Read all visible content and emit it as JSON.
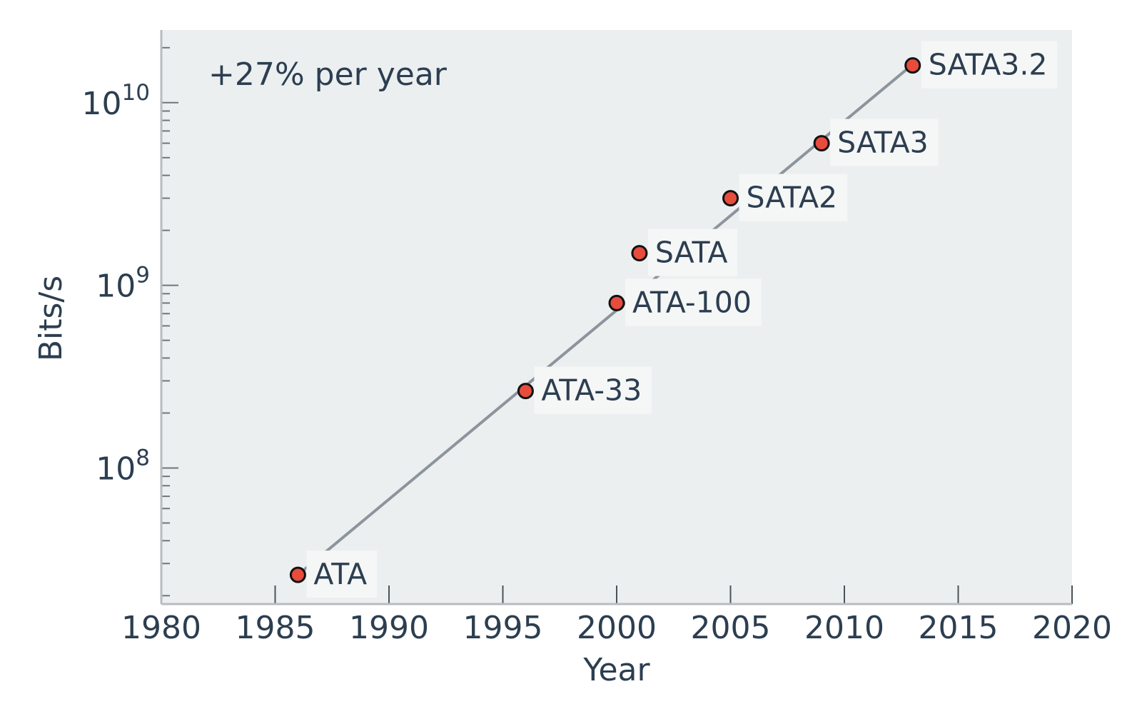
{
  "chart_data": {
    "type": "scatter",
    "title": "",
    "xlabel": "Year",
    "ylabel": "Bits/s",
    "xlim": [
      1980,
      2020
    ],
    "ylim": [
      18000000.0,
      25000000000.0
    ],
    "y_scale": "log",
    "grid": false,
    "x_ticks": [
      1980,
      1985,
      1990,
      1995,
      2000,
      2005,
      2010,
      2015,
      2020
    ],
    "y_ticks": [
      {
        "value": 100000000.0,
        "base": "10",
        "exp": "8"
      },
      {
        "value": 1000000000.0,
        "base": "10",
        "exp": "9"
      },
      {
        "value": 10000000000.0,
        "base": "10",
        "exp": "10"
      }
    ],
    "annotation": "+27% per year",
    "trend_line": {
      "x": [
        1986,
        2013
      ],
      "y": [
        26000000.0,
        16200000000.0
      ]
    },
    "points": [
      {
        "label": "ATA",
        "x": 1986,
        "y": 26000000.0
      },
      {
        "label": "ATA-33",
        "x": 1996,
        "y": 264000000.0
      },
      {
        "label": "ATA-100",
        "x": 2000,
        "y": 800000000.0
      },
      {
        "label": "SATA",
        "x": 2001,
        "y": 1500000000.0
      },
      {
        "label": "SATA2",
        "x": 2005,
        "y": 3000000000.0
      },
      {
        "label": "SATA3",
        "x": 2009,
        "y": 6000000000.0
      },
      {
        "label": "SATA3.2",
        "x": 2013,
        "y": 16000000000.0
      }
    ],
    "colors": {
      "plot_bg": "#eceff0",
      "point_fill": "#e74c3c",
      "point_stroke": "#111111",
      "line": "#8c959c",
      "text": "#2c3e50",
      "label_bg": "#f5f6f6",
      "axis": "#b8bcbf"
    }
  }
}
